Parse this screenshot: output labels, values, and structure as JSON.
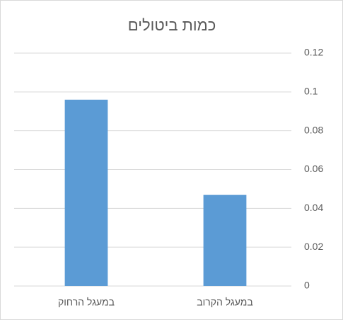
{
  "chart_data": {
    "type": "bar",
    "title": "כמות ביטולים",
    "categories": [
      "במעגל הרחוק",
      "במעגל הקרוב"
    ],
    "values": [
      0.096,
      0.047
    ],
    "color": "#5b9bd5",
    "ylim": [
      0,
      0.12
    ],
    "yticks": [
      0,
      0.02,
      0.04,
      0.06,
      0.08,
      0.1,
      0.12
    ],
    "grid": true
  }
}
